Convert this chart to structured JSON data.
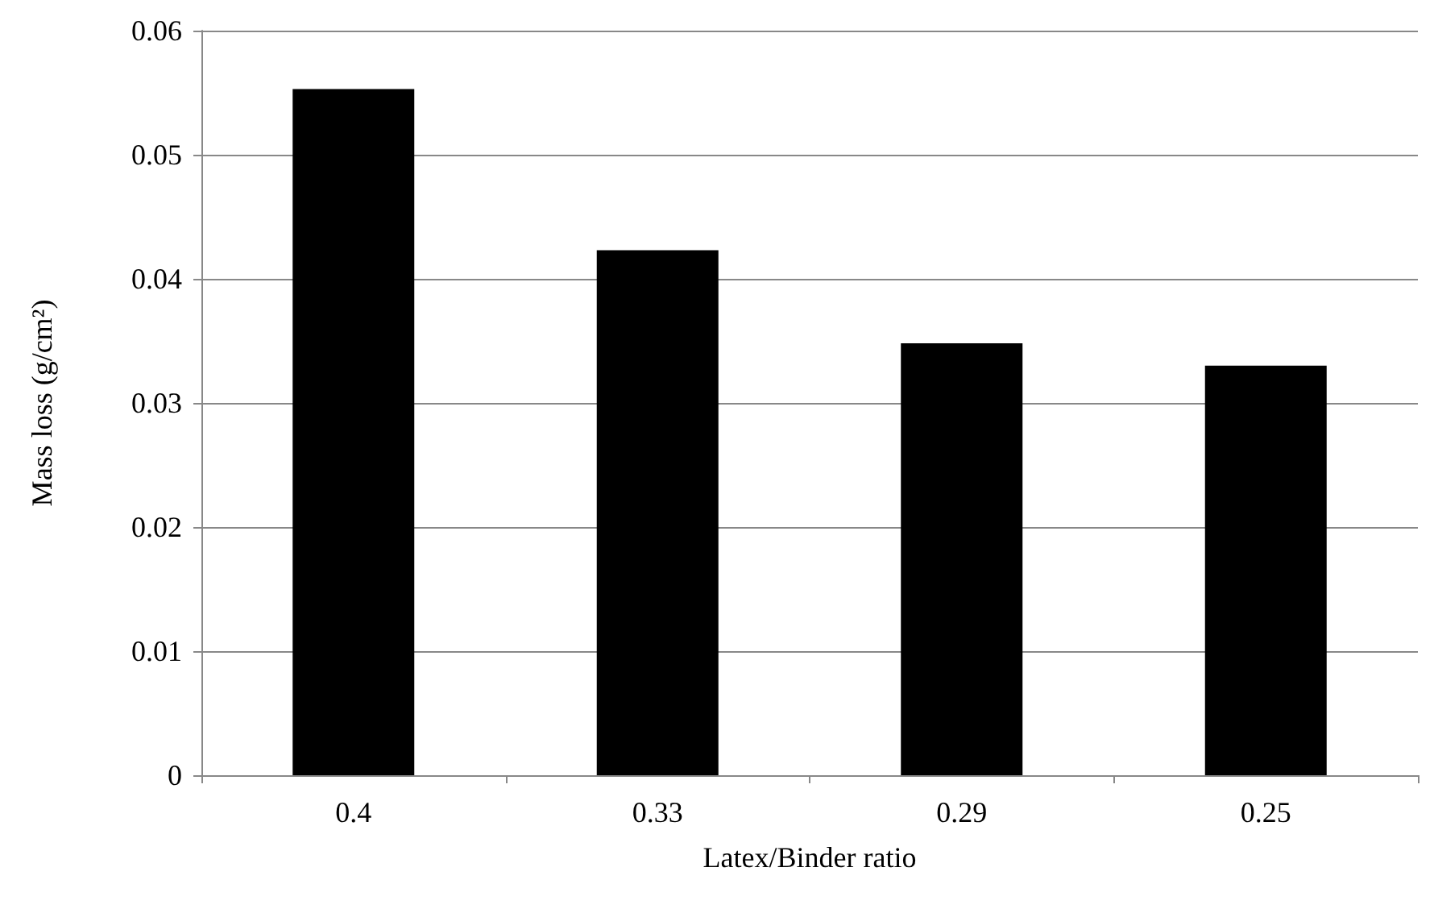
{
  "chart_data": {
    "type": "bar",
    "xlabel": "Latex/Binder ratio",
    "ylabel": "Mass loss (g/cm²)",
    "categories": [
      "0.4",
      "0.33",
      "0.29",
      "0.25"
    ],
    "values": [
      0.0553,
      0.0423,
      0.0348,
      0.033
    ],
    "color": "#000000",
    "ylim": [
      0,
      0.06
    ],
    "yticks": [
      0,
      0.01,
      0.02,
      0.03,
      0.04,
      0.05,
      0.06
    ],
    "grid": "y"
  }
}
